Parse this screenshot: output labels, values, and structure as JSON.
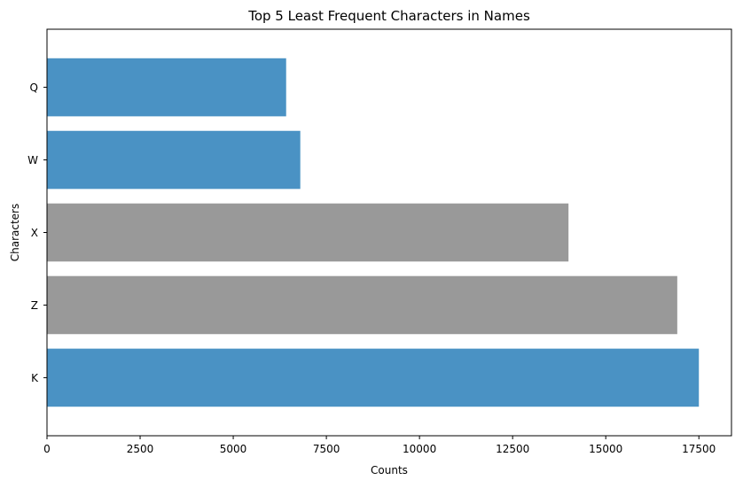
{
  "chart_data": {
    "type": "bar",
    "orientation": "horizontal",
    "title": "Top 5 Least Frequent Characters in Names",
    "xlabel": "Counts",
    "ylabel": "Characters",
    "categories": [
      "K",
      "Z",
      "X",
      "W",
      "Q"
    ],
    "values": [
      17500,
      16920,
      14000,
      6800,
      6420
    ],
    "bar_colors": [
      "#4a92c4",
      "#999999",
      "#999999",
      "#4a92c4",
      "#4a92c4"
    ],
    "xlim": [
      0,
      18375
    ],
    "xticks": [
      0,
      2500,
      5000,
      7500,
      10000,
      12500,
      15000,
      17500
    ],
    "xtick_labels": [
      "0",
      "2500",
      "5000",
      "7500",
      "10000",
      "12500",
      "15000",
      "17500"
    ],
    "grid": false
  }
}
